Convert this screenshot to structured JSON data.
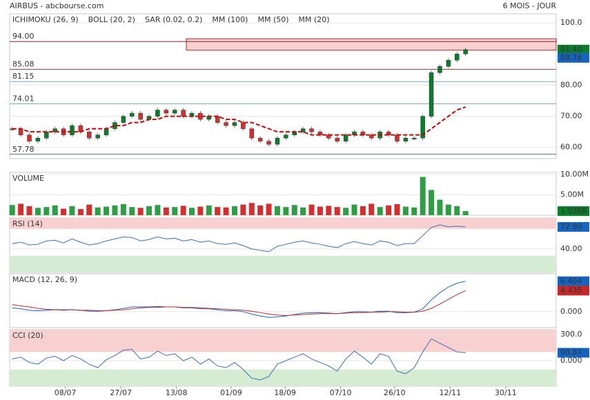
{
  "header": {
    "title": "AIRBUS - abcbourse.com",
    "period": "6 MOIS - JOUR"
  },
  "chart_data": [
    {
      "type": "price",
      "ylim": [
        56.4,
        102.9
      ],
      "xlim": [
        -0.3,
        63.6
      ],
      "yticks": [
        {
          "value": 100,
          "label": "100.0"
        },
        {
          "value": 80,
          "label": "80.00"
        },
        {
          "value": 70,
          "label": "70.00"
        },
        {
          "value": 60,
          "label": "60.00"
        }
      ],
      "legend": [
        {
          "name": "ICHIMOKU (26, 9)",
          "color": "#1e3a8a"
        },
        {
          "name": "BOLL (20, 2)",
          "color": "#f4a460"
        },
        {
          "name": "SAR (0.02, 0.2)",
          "color": "#b22222"
        },
        {
          "name": "MM (100)",
          "color": "#8b008b"
        },
        {
          "name": "MM (50)",
          "color": "#ff00ff"
        },
        {
          "name": "MM (20)",
          "color": "#cc0000"
        }
      ],
      "levels": [
        {
          "value": 94,
          "label": "94.00",
          "color": "#8b0000"
        },
        {
          "value": 85.08,
          "label": "85.08",
          "color": "#8b0000"
        },
        {
          "value": 81.15,
          "label": "81.15",
          "color": "#4a90c2"
        },
        {
          "value": 74.01,
          "label": "74.01",
          "color": "#4a90c2"
        },
        {
          "value": 57.78,
          "label": "57.78",
          "color": "#1e3a8a"
        }
      ],
      "tags": [
        {
          "value": 91.4,
          "label": "91.40",
          "color": "#0a7d2c"
        },
        {
          "value": 88.76,
          "label": "88.76",
          "color": "#1565c0"
        }
      ],
      "bands": [
        {
          "from": 91.2,
          "to": 94.9,
          "color": "#f9d0d0"
        }
      ],
      "series": [
        {
          "name": "close",
          "color": "#0a7d2c",
          "down_color": "#d32f2f",
          "values": [
            66,
            64,
            62,
            63,
            65,
            66,
            64,
            67,
            65,
            63,
            64,
            66,
            68,
            70,
            71,
            69,
            70,
            72,
            71,
            72,
            70,
            71,
            69,
            70,
            68,
            67,
            68,
            66,
            63,
            62,
            61,
            63,
            64,
            65,
            66,
            65,
            64,
            63,
            62,
            64,
            65,
            64,
            63,
            65,
            64,
            62,
            63,
            63,
            70,
            84,
            86,
            88,
            90,
            91.4
          ]
        },
        {
          "name": "MM (20)",
          "color": "#cc0000",
          "values": [
            66,
            66,
            65,
            65,
            65,
            65,
            65,
            65,
            65,
            66,
            66,
            66,
            67,
            67,
            68,
            68,
            69,
            69,
            70,
            70,
            70,
            70,
            70,
            70,
            70,
            69,
            69,
            68,
            68,
            67,
            66,
            65,
            65,
            65,
            65,
            64,
            64,
            64,
            64,
            64,
            64,
            64,
            64,
            64,
            64,
            64,
            64,
            64,
            64,
            66,
            68,
            70,
            72,
            73
          ]
        }
      ]
    },
    {
      "type": "bar",
      "title": "VOLUME",
      "ylim": [
        0,
        10.5
      ],
      "xlim": [
        -0.3,
        63.6
      ],
      "yticks": [
        {
          "value": 10,
          "label": "10.00M"
        },
        {
          "value": 5,
          "label": "5.00M"
        }
      ],
      "last_label": "1 038K",
      "color": "#d32f2f",
      "up_color": "#2e9e44",
      "values": [
        2.5,
        2.8,
        2.2,
        1.8,
        2.0,
        2.4,
        1.6,
        2.2,
        1.5,
        2.6,
        1.9,
        2.1,
        2.4,
        2.7,
        2.0,
        1.8,
        2.2,
        2.5,
        1.9,
        2.0,
        2.3,
        1.8,
        2.1,
        2.4,
        2.0,
        1.9,
        2.2,
        2.6,
        3.0,
        2.4,
        2.8,
        2.2,
        2.0,
        2.5,
        1.9,
        2.6,
        2.1,
        2.3,
        2.0,
        1.8,
        2.6,
        2.2,
        2.8,
        2.0,
        2.4,
        2.7,
        2.1,
        1.9,
        9.4,
        6.2,
        3.8,
        2.6,
        2.2,
        1.0
      ]
    },
    {
      "type": "line",
      "title": "RSI (14)",
      "ylim": [
        5,
        86.3
      ],
      "xlim": [
        -0.3,
        63.6
      ],
      "yticks": [
        {
          "value": 40,
          "label": "40.00"
        }
      ],
      "bands": [
        {
          "from": 70,
          "to": 86.3,
          "color": "#f9d0d0"
        },
        {
          "from": 5,
          "to": 30,
          "color": "#d6ecd2"
        }
      ],
      "tags": [
        {
          "value": 72.9,
          "label": "72.90",
          "color": "#1565c0"
        }
      ],
      "series": [
        {
          "name": "RSI",
          "color": "#3b6fb6",
          "values": [
            48,
            50,
            46,
            47,
            52,
            53,
            49,
            55,
            50,
            46,
            48,
            52,
            55,
            58,
            57,
            52,
            54,
            58,
            55,
            56,
            52,
            54,
            50,
            52,
            48,
            47,
            49,
            45,
            40,
            38,
            36,
            44,
            47,
            50,
            52,
            49,
            47,
            44,
            42,
            48,
            51,
            48,
            46,
            52,
            50,
            45,
            48,
            48,
            60,
            72,
            76,
            73,
            74,
            72.9
          ]
        }
      ]
    },
    {
      "type": "line",
      "title": "MACD (12, 26, 9)",
      "ylim": [
        -3.35,
        7.98
      ],
      "xlim": [
        -0.3,
        63.6
      ],
      "yticks": [
        {
          "value": 0,
          "label": "0.000"
        }
      ],
      "tags": [
        {
          "value": 6.404,
          "label": "6.404",
          "color": "#1565c0"
        },
        {
          "value": 4.435,
          "label": "4.435",
          "color": "#c62828"
        }
      ],
      "series": [
        {
          "name": "MACD",
          "color": "#1565c0",
          "values": [
            0.8,
            0.6,
            0.3,
            0.2,
            0.3,
            0.4,
            0.3,
            0.4,
            0.3,
            0.1,
            0.1,
            0.2,
            0.4,
            0.7,
            1.0,
            1.0,
            1.0,
            1.1,
            1.0,
            1.0,
            0.8,
            0.8,
            0.6,
            0.6,
            0.4,
            0.2,
            0.2,
            0,
            -0.5,
            -0.9,
            -1.2,
            -1.1,
            -0.9,
            -0.6,
            -0.3,
            -0.2,
            -0.2,
            -0.3,
            -0.4,
            -0.2,
            0,
            0,
            -0.1,
            0.1,
            0.1,
            -0.2,
            -0.2,
            -0.1,
            0.6,
            2.5,
            4.0,
            5.2,
            6.0,
            6.404
          ]
        },
        {
          "name": "Signal",
          "color": "#c62828",
          "values": [
            1.5,
            1.2,
            1.0,
            0.7,
            0.5,
            0.4,
            0.4,
            0.4,
            0.3,
            0.3,
            0.2,
            0.2,
            0.3,
            0.4,
            0.6,
            0.8,
            0.9,
            0.9,
            1.0,
            1.0,
            0.9,
            0.9,
            0.8,
            0.7,
            0.6,
            0.5,
            0.4,
            0.3,
            0.1,
            -0.2,
            -0.5,
            -0.7,
            -0.8,
            -0.7,
            -0.6,
            -0.5,
            -0.4,
            -0.4,
            -0.4,
            -0.3,
            -0.2,
            -0.2,
            -0.1,
            -0.1,
            0,
            0,
            -0.1,
            -0.1,
            0.1,
            0.7,
            1.6,
            2.6,
            3.6,
            4.435
          ]
        }
      ]
    },
    {
      "type": "line",
      "title": "CCI (20)",
      "ylim": [
        -292,
        355
      ],
      "xlim": [
        -0.3,
        63.6
      ],
      "yticks": [
        {
          "value": 300,
          "label": "300.0"
        },
        {
          "value": 0,
          "label": "0.000"
        }
      ],
      "bands": [
        {
          "from": 100,
          "to": 355,
          "color": "#f9d0d0"
        },
        {
          "from": -292,
          "to": -100,
          "color": "#d6ecd2"
        }
      ],
      "tags": [
        {
          "value": 90.87,
          "label": "90.87",
          "color": "#1565c0"
        }
      ],
      "xticks": [
        {
          "value": 6.2,
          "label": "08/07"
        },
        {
          "value": 12.7,
          "label": "27/07"
        },
        {
          "value": 19.2,
          "label": "13/08"
        },
        {
          "value": 25.6,
          "label": "01/09"
        },
        {
          "value": 31.9,
          "label": "18/09"
        },
        {
          "value": 38.4,
          "label": "07/10"
        },
        {
          "value": 44.7,
          "label": "26/10"
        },
        {
          "value": 51.2,
          "label": "12/11"
        },
        {
          "value": 57.7,
          "label": "30/11"
        }
      ],
      "series": [
        {
          "name": "CCI",
          "color": "#3b6fb6",
          "values": [
            20,
            40,
            -20,
            -40,
            30,
            50,
            0,
            60,
            20,
            -40,
            -80,
            10,
            60,
            120,
            130,
            20,
            40,
            110,
            60,
            80,
            0,
            40,
            -40,
            20,
            -60,
            -80,
            -20,
            -100,
            -200,
            -220,
            -180,
            -40,
            0,
            40,
            80,
            20,
            -20,
            -60,
            -120,
            20,
            110,
            40,
            -40,
            80,
            50,
            -120,
            -150,
            -80,
            100,
            250,
            200,
            150,
            100,
            90.87
          ]
        }
      ]
    }
  ]
}
